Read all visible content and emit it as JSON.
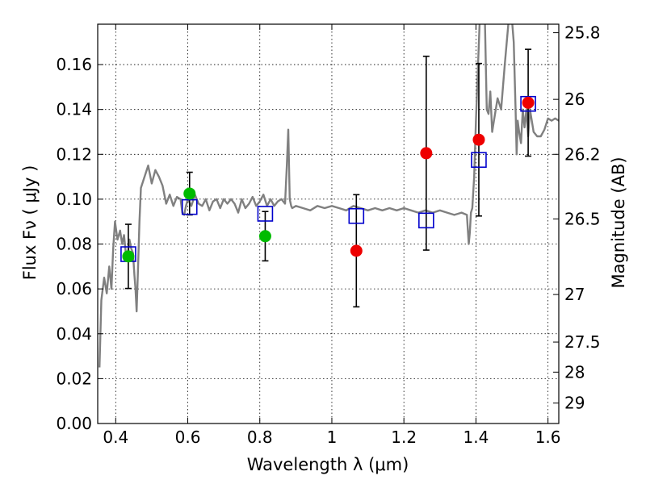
{
  "chart_data": {
    "type": "scatter",
    "xlabel": "Wavelength  λ (μm)",
    "ylabel": "Flux  Fν  ( μJy )",
    "y2label": "Magnitude (AB)",
    "xlim": [
      0.35,
      1.63
    ],
    "ylim": [
      0.0,
      0.178
    ],
    "grid": true,
    "x_ticks": [
      {
        "value": 0.4,
        "label": "0.4"
      },
      {
        "value": 0.6,
        "label": "0.6"
      },
      {
        "value": 0.8,
        "label": "0.8"
      },
      {
        "value": 1.0,
        "label": "1"
      },
      {
        "value": 1.2,
        "label": "1.2"
      },
      {
        "value": 1.4,
        "label": "1.4"
      },
      {
        "value": 1.6,
        "label": "1.6"
      }
    ],
    "y_ticks": [
      {
        "value": 0.0,
        "label": "0.00"
      },
      {
        "value": 0.02,
        "label": "0.02"
      },
      {
        "value": 0.04,
        "label": "0.04"
      },
      {
        "value": 0.06,
        "label": "0.06"
      },
      {
        "value": 0.08,
        "label": "0.08"
      },
      {
        "value": 0.1,
        "label": "0.10"
      },
      {
        "value": 0.12,
        "label": "0.12"
      },
      {
        "value": 0.14,
        "label": "0.14"
      },
      {
        "value": 0.16,
        "label": "0.16"
      }
    ],
    "y2_ticks": [
      {
        "flux": 0.1742,
        "label": "25.8"
      },
      {
        "flux": 0.1445,
        "label": "26"
      },
      {
        "flux": 0.12,
        "label": "26.2"
      },
      {
        "flux": 0.0912,
        "label": "26.5"
      },
      {
        "flux": 0.0575,
        "label": "27"
      },
      {
        "flux": 0.0363,
        "label": "27.5"
      },
      {
        "flux": 0.0229,
        "label": "28"
      },
      {
        "flux": 0.0091,
        "label": "29"
      }
    ],
    "model_spectrum": {
      "color": "#808080",
      "x": [
        0.355,
        0.36,
        0.368,
        0.375,
        0.382,
        0.388,
        0.393,
        0.398,
        0.405,
        0.412,
        0.418,
        0.423,
        0.428,
        0.433,
        0.438,
        0.443,
        0.448,
        0.452,
        0.455,
        0.458,
        0.462,
        0.466,
        0.47,
        0.48,
        0.49,
        0.5,
        0.51,
        0.52,
        0.53,
        0.54,
        0.55,
        0.56,
        0.57,
        0.58,
        0.585,
        0.59,
        0.595,
        0.6,
        0.61,
        0.62,
        0.63,
        0.64,
        0.65,
        0.66,
        0.67,
        0.68,
        0.69,
        0.7,
        0.71,
        0.72,
        0.73,
        0.74,
        0.75,
        0.76,
        0.77,
        0.78,
        0.79,
        0.8,
        0.81,
        0.82,
        0.83,
        0.84,
        0.85,
        0.86,
        0.87,
        0.875,
        0.879,
        0.883,
        0.887,
        0.89,
        0.9,
        0.92,
        0.94,
        0.96,
        0.98,
        1.0,
        1.02,
        1.04,
        1.06,
        1.08,
        1.1,
        1.12,
        1.14,
        1.16,
        1.18,
        1.2,
        1.22,
        1.24,
        1.26,
        1.28,
        1.3,
        1.32,
        1.34,
        1.36,
        1.375,
        1.38,
        1.383,
        1.386,
        1.39,
        1.395,
        1.4,
        1.41,
        1.42,
        1.425,
        1.43,
        1.435,
        1.44,
        1.445,
        1.45,
        1.46,
        1.47,
        1.48,
        1.49,
        1.5,
        1.505,
        1.51,
        1.513,
        1.516,
        1.52,
        1.525,
        1.53,
        1.535,
        1.54,
        1.545,
        1.55,
        1.56,
        1.57,
        1.58,
        1.59,
        1.6,
        1.61,
        1.62,
        1.63
      ],
      "y": [
        0.025,
        0.055,
        0.065,
        0.058,
        0.07,
        0.06,
        0.078,
        0.09,
        0.082,
        0.086,
        0.08,
        0.084,
        0.076,
        0.074,
        0.082,
        0.078,
        0.076,
        0.066,
        0.06,
        0.05,
        0.07,
        0.09,
        0.105,
        0.11,
        0.115,
        0.107,
        0.113,
        0.11,
        0.106,
        0.098,
        0.102,
        0.097,
        0.101,
        0.1,
        0.094,
        0.093,
        0.097,
        0.1,
        0.097,
        0.102,
        0.098,
        0.097,
        0.1,
        0.095,
        0.099,
        0.1,
        0.096,
        0.1,
        0.098,
        0.1,
        0.098,
        0.094,
        0.1,
        0.096,
        0.098,
        0.101,
        0.097,
        0.099,
        0.102,
        0.097,
        0.1,
        0.097,
        0.099,
        0.1,
        0.098,
        0.115,
        0.131,
        0.1,
        0.097,
        0.096,
        0.097,
        0.096,
        0.095,
        0.097,
        0.096,
        0.097,
        0.096,
        0.095,
        0.097,
        0.096,
        0.095,
        0.096,
        0.095,
        0.096,
        0.095,
        0.096,
        0.095,
        0.094,
        0.095,
        0.094,
        0.095,
        0.094,
        0.093,
        0.094,
        0.093,
        0.08,
        0.085,
        0.094,
        0.096,
        0.11,
        0.135,
        0.178,
        0.18,
        0.178,
        0.14,
        0.138,
        0.148,
        0.13,
        0.135,
        0.145,
        0.14,
        0.16,
        0.178,
        0.18,
        0.17,
        0.14,
        0.12,
        0.135,
        0.13,
        0.125,
        0.14,
        0.132,
        0.14,
        0.128,
        0.14,
        0.13,
        0.128,
        0.128,
        0.131,
        0.136,
        0.135,
        0.136,
        0.135
      ]
    },
    "series": [
      {
        "name": "",
        "marker": "square-open",
        "color": "#0000cc",
        "points": [
          {
            "x": 0.435,
            "y": 0.0755
          },
          {
            "x": 0.605,
            "y": 0.0965
          },
          {
            "x": 0.815,
            "y": 0.0935
          },
          {
            "x": 1.068,
            "y": 0.0925
          },
          {
            "x": 1.262,
            "y": 0.0905
          },
          {
            "x": 1.408,
            "y": 0.1175
          },
          {
            "x": 1.545,
            "y": 0.1425
          }
        ]
      },
      {
        "name": "",
        "marker": "circle",
        "color": "#00bb00",
        "points": [
          {
            "x": 0.435,
            "y": 0.0745,
            "err": 0.0143
          },
          {
            "x": 0.605,
            "y": 0.1025,
            "err": 0.0095
          },
          {
            "x": 0.815,
            "y": 0.0835,
            "err": 0.011
          }
        ]
      },
      {
        "name": "",
        "marker": "circle",
        "color": "#ee0000",
        "points": [
          {
            "x": 1.068,
            "y": 0.077,
            "err": 0.025
          },
          {
            "x": 1.262,
            "y": 0.1205,
            "err": 0.0432
          },
          {
            "x": 1.408,
            "y": 0.1265,
            "err": 0.034
          },
          {
            "x": 1.545,
            "y": 0.143,
            "err": 0.0238
          }
        ]
      }
    ]
  }
}
